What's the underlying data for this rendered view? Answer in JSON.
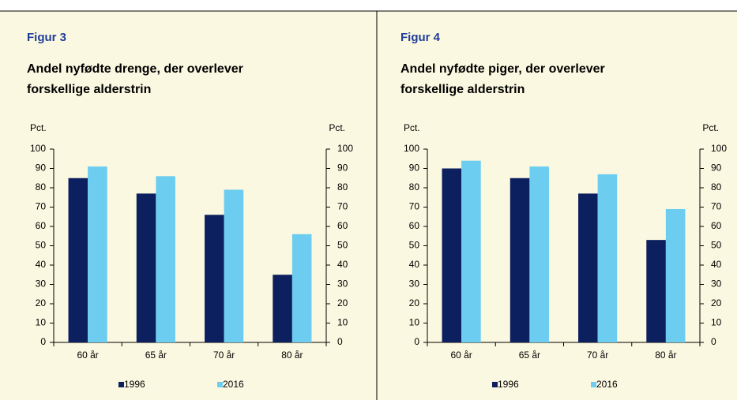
{
  "chart_data": [
    {
      "type": "bar",
      "figure": "Figur 3",
      "title": [
        "Andel nyfødte drenge, der overlever",
        "forskellige alderstrin"
      ],
      "ylabel": "Pct.",
      "y2label": "Pct.",
      "categories": [
        "60 år",
        "65 år",
        "70 år",
        "80 år"
      ],
      "series": [
        {
          "name": "1996",
          "color": "#0c1f5e",
          "values": [
            85,
            77,
            66,
            35
          ]
        },
        {
          "name": "2016",
          "color": "#6ccdf0",
          "values": [
            91,
            86,
            79,
            56
          ]
        }
      ],
      "ylim": [
        0,
        100
      ],
      "yticks": [
        0,
        10,
        20,
        30,
        40,
        50,
        60,
        70,
        80,
        90,
        100
      ],
      "y2lim": [
        0,
        100
      ],
      "y2ticks": [
        0,
        10,
        20,
        30,
        40,
        50,
        60,
        70,
        80,
        90,
        100
      ],
      "grid": false,
      "legend": "bottom"
    },
    {
      "type": "bar",
      "figure": "Figur 4",
      "title": [
        "Andel nyfødte piger, der overlever",
        "forskellige alderstrin"
      ],
      "ylabel": "Pct.",
      "y2label": "Pct.",
      "categories": [
        "60 år",
        "65 år",
        "70 år",
        "80 år"
      ],
      "series": [
        {
          "name": "1996",
          "color": "#0c1f5e",
          "values": [
            90,
            85,
            77,
            53
          ]
        },
        {
          "name": "2016",
          "color": "#6ccdf0",
          "values": [
            94,
            91,
            87,
            69
          ]
        }
      ],
      "ylim": [
        0,
        100
      ],
      "yticks": [
        0,
        10,
        20,
        30,
        40,
        50,
        60,
        70,
        80,
        90,
        100
      ],
      "y2lim": [
        0,
        100
      ],
      "y2ticks": [
        0,
        10,
        20,
        30,
        40,
        50,
        60,
        70,
        80,
        90,
        100
      ],
      "grid": false,
      "legend": "bottom"
    }
  ]
}
